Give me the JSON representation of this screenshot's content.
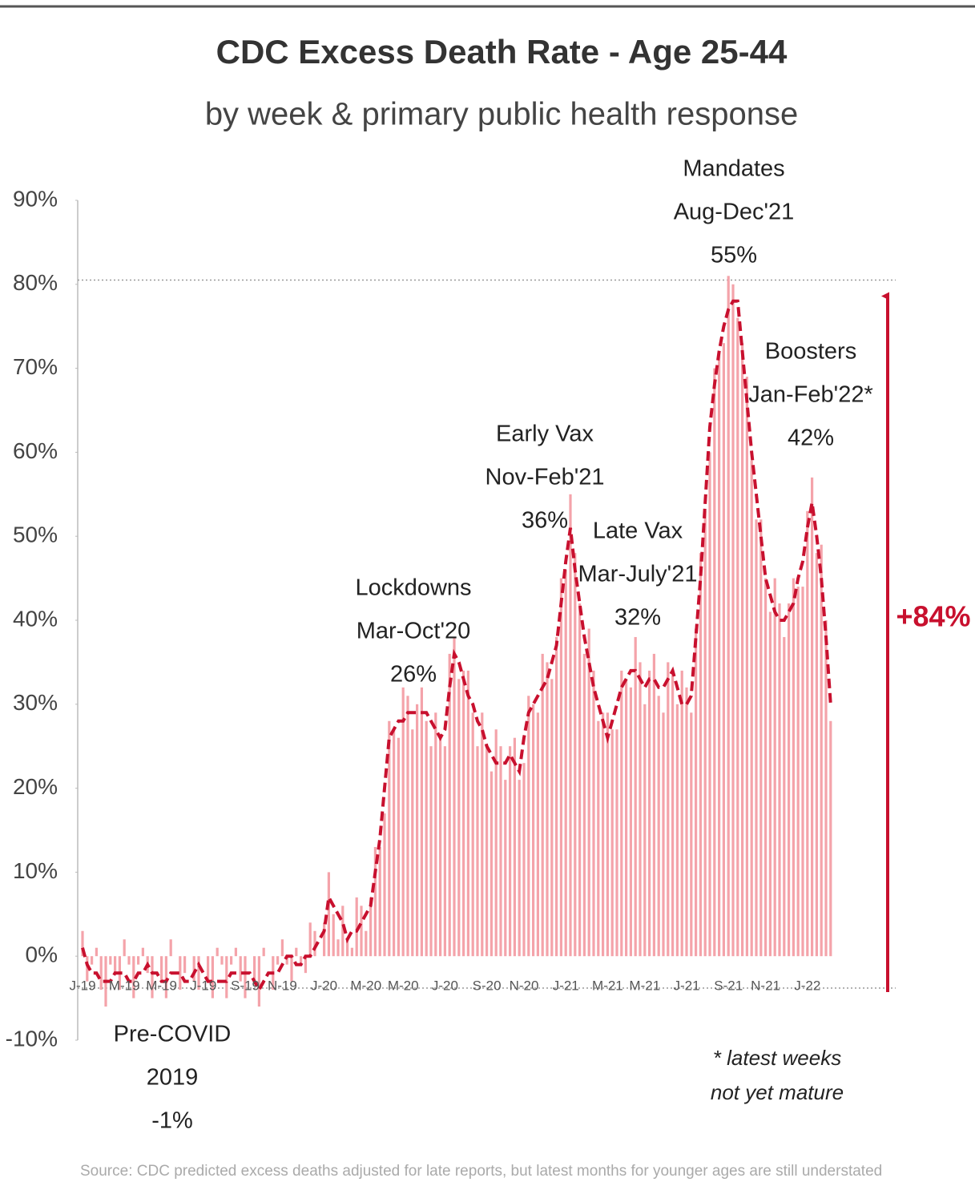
{
  "chart_data": {
    "type": "bar",
    "title": "CDC Excess Death Rate - Age 25-44",
    "subtitle": "by week & primary public health response",
    "categories": [
      "J-19",
      null,
      null,
      null,
      null,
      null,
      null,
      null,
      null,
      "M-19",
      null,
      null,
      null,
      null,
      null,
      null,
      null,
      "M-19",
      null,
      null,
      null,
      null,
      null,
      null,
      null,
      null,
      "J-19",
      null,
      null,
      null,
      null,
      null,
      null,
      null,
      null,
      "S-19",
      null,
      null,
      null,
      null,
      null,
      null,
      null,
      "N-19",
      null,
      null,
      null,
      null,
      null,
      null,
      null,
      null,
      "J-20",
      null,
      null,
      null,
      null,
      null,
      null,
      null,
      null,
      "M-20",
      null,
      null,
      null,
      null,
      null,
      null,
      null,
      "M-20",
      null,
      null,
      null,
      null,
      null,
      null,
      null,
      null,
      "J-20",
      null,
      null,
      null,
      null,
      null,
      null,
      null,
      null,
      "S-20",
      null,
      null,
      null,
      null,
      null,
      null,
      null,
      "N-20",
      null,
      null,
      null,
      null,
      null,
      null,
      null,
      null,
      "J-21",
      null,
      null,
      null,
      null,
      null,
      null,
      null,
      null,
      "M-21",
      null,
      null,
      null,
      null,
      null,
      null,
      null,
      "M-21",
      null,
      null,
      null,
      null,
      null,
      null,
      null,
      null,
      "J-21",
      null,
      null,
      null,
      null,
      null,
      null,
      null,
      null,
      "S-21",
      null,
      null,
      null,
      null,
      null,
      null,
      null,
      "N-21",
      null,
      null,
      null,
      null,
      null,
      null,
      null,
      null,
      "J-22",
      null,
      null,
      null,
      null,
      null
    ],
    "series": [
      {
        "kind": "bar",
        "color": "#f4a3aa",
        "values": [
          3,
          -3,
          -1,
          1,
          -4,
          -6,
          -1,
          -2,
          -4,
          2,
          -1,
          -5,
          -1,
          1,
          -2,
          -5,
          0,
          -3,
          -5,
          2,
          0,
          -4,
          -2,
          0,
          -3,
          -4,
          0,
          -3,
          -5,
          1,
          -1,
          -5,
          -1,
          1,
          -3,
          -5,
          0,
          -3,
          -6,
          1,
          0,
          -4,
          -1,
          2,
          -1,
          -3,
          1,
          -1,
          -2,
          4,
          3,
          0,
          4,
          10,
          5,
          2,
          6,
          2,
          1,
          7,
          6,
          3,
          7,
          13,
          13,
          17,
          28,
          27,
          26,
          32,
          31,
          27,
          30,
          32,
          28,
          25,
          29,
          26,
          25,
          36,
          38,
          33,
          34,
          34,
          29,
          25,
          29,
          25,
          22,
          27,
          25,
          21,
          25,
          26,
          21,
          23,
          31,
          30,
          29,
          36,
          35,
          33,
          38,
          45,
          46,
          55,
          48,
          42,
          36,
          39,
          34,
          28,
          29,
          29,
          27,
          27,
          34,
          33,
          32,
          38,
          35,
          30,
          34,
          36,
          31,
          29,
          35,
          34,
          30,
          34,
          32,
          29,
          39,
          48,
          53,
          60,
          70,
          72,
          73,
          81,
          80,
          76,
          73,
          69,
          59,
          52,
          52,
          45,
          41,
          45,
          42,
          38,
          42,
          45,
          44,
          44,
          53,
          57,
          48,
          49,
          40,
          28
        ]
      },
      {
        "kind": "line",
        "color": "#c8102e",
        "values": [
          1,
          -1,
          -2,
          -2,
          -3,
          -3,
          -3,
          -2,
          -2,
          -2,
          -3,
          -3,
          -2,
          -2,
          -1,
          -2,
          -2,
          -3,
          -3,
          -2,
          -2,
          -2,
          -3,
          -3,
          -2,
          -1,
          -2,
          -3,
          -3,
          -3,
          -3,
          -3,
          -2,
          -2,
          -2,
          -2,
          -2,
          -3,
          -4,
          -3,
          -2,
          -2,
          -2,
          -1,
          0,
          0,
          -1,
          -1,
          0,
          0,
          1,
          2,
          3,
          7,
          6,
          5,
          4,
          2,
          3,
          3,
          4,
          5,
          6,
          10,
          14,
          20,
          26,
          27,
          28,
          28,
          29,
          29,
          29,
          29,
          29,
          28,
          27,
          26,
          27,
          32,
          36,
          35,
          33,
          31,
          30,
          28,
          27,
          25,
          24,
          23,
          23,
          23,
          24,
          23,
          22,
          26,
          29,
          30,
          31,
          32,
          33,
          35,
          37,
          42,
          47,
          51,
          46,
          42,
          38,
          35,
          32,
          30,
          28,
          26,
          28,
          30,
          32,
          33,
          34,
          34,
          33,
          32,
          33,
          33,
          32,
          32,
          33,
          34,
          32,
          30,
          30,
          31,
          38,
          45,
          54,
          63,
          68,
          72,
          75,
          77,
          78,
          78,
          72,
          66,
          60,
          55,
          50,
          45,
          43,
          41,
          40,
          40,
          41,
          42,
          45,
          47,
          51,
          54,
          50,
          45,
          38,
          30
        ]
      }
    ],
    "ylim": [
      -10,
      90
    ],
    "yticks": [
      {
        "value": -10,
        "label": "-10%"
      },
      {
        "value": 0,
        "label": "0%"
      },
      {
        "value": 10,
        "label": "10%"
      },
      {
        "value": 20,
        "label": "20%"
      },
      {
        "value": 30,
        "label": "30%"
      },
      {
        "value": 40,
        "label": "40%"
      },
      {
        "value": 50,
        "label": "50%"
      },
      {
        "value": 60,
        "label": "60%"
      },
      {
        "value": 70,
        "label": "70%"
      },
      {
        "value": 80,
        "label": "80%"
      },
      {
        "value": 90,
        "label": "90%"
      }
    ],
    "reference_lines": [
      80.5,
      -3.8
    ],
    "change_label": "+84%",
    "annotations": [
      {
        "lines": [
          "Pre-COVID",
          "2019",
          "-1%"
        ]
      },
      {
        "lines": [
          "Lockdowns",
          "Mar-Oct'20",
          "26%"
        ]
      },
      {
        "lines": [
          "Early Vax",
          "Nov-Feb'21",
          "36%"
        ]
      },
      {
        "lines": [
          "Late Vax",
          "Mar-July'21",
          "32%"
        ]
      },
      {
        "lines": [
          "Mandates",
          "Aug-Dec'21",
          "55%"
        ]
      },
      {
        "lines": [
          "Boosters",
          "Jan-Feb'22*",
          "42%"
        ]
      }
    ],
    "footnote": [
      "* latest weeks",
      "not yet mature"
    ],
    "source": "Source: CDC predicted excess deaths adjusted for late reports, but latest months for younger ages are still understated"
  }
}
